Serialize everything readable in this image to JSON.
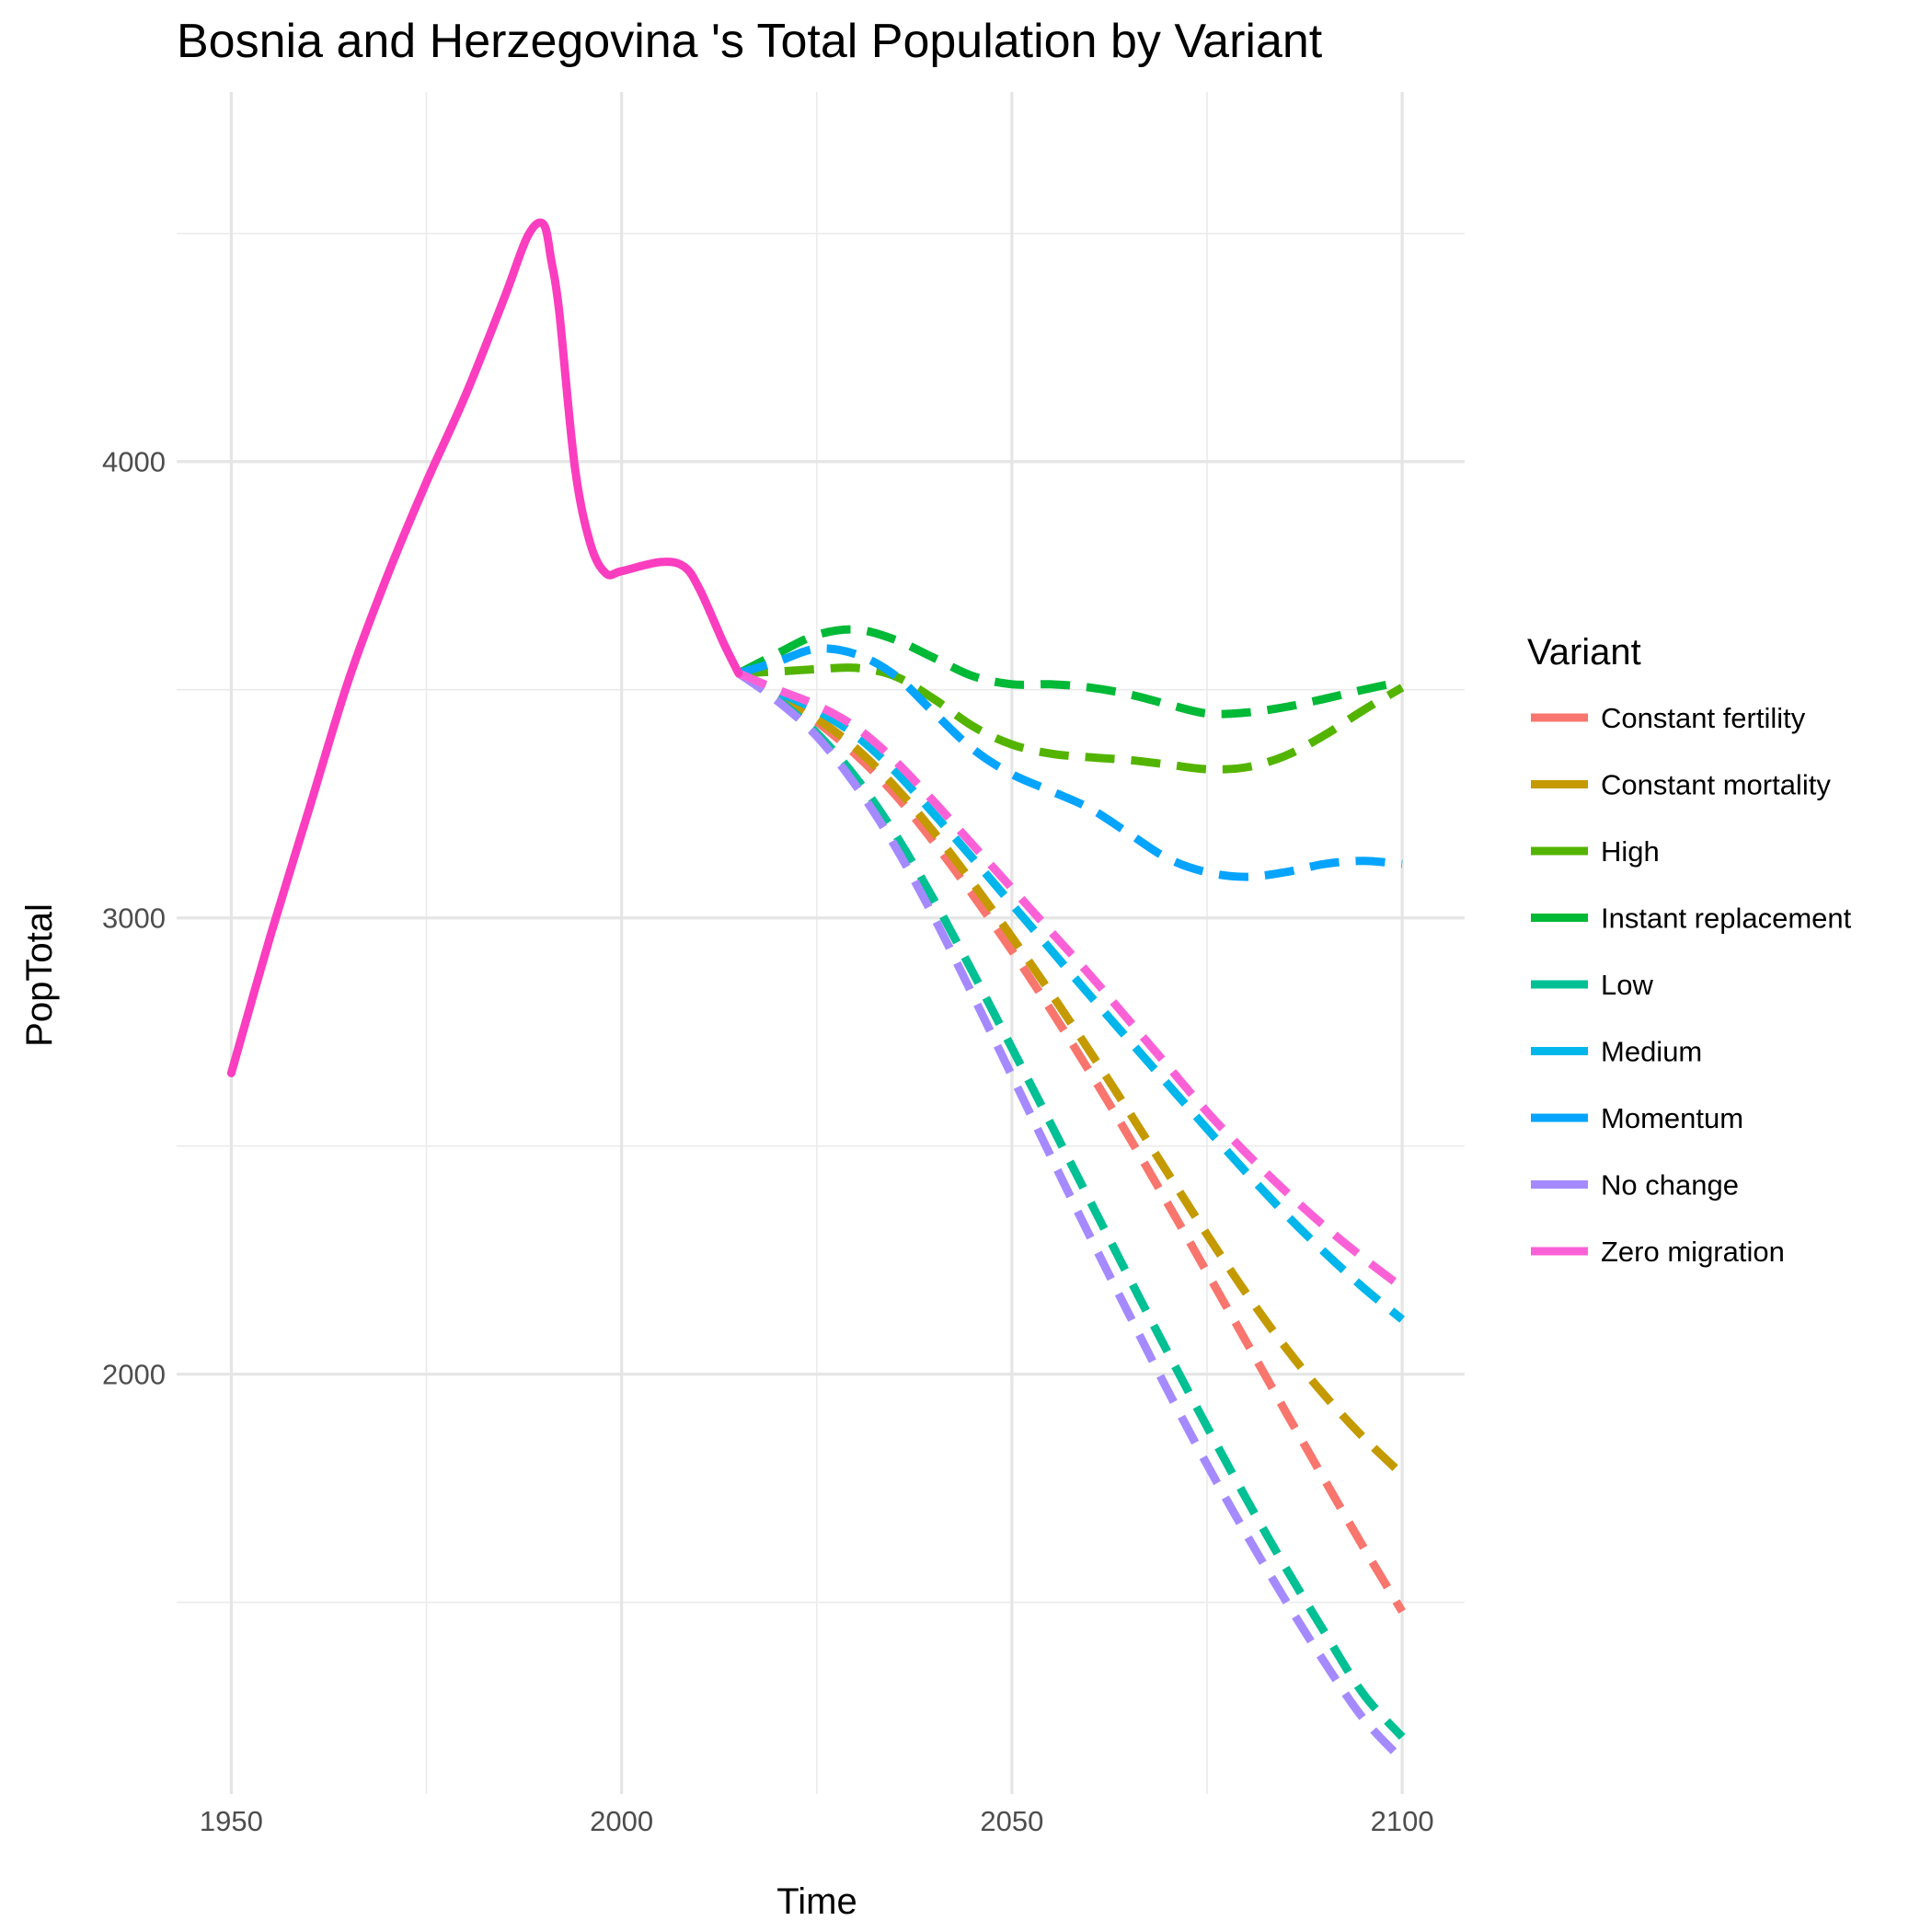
{
  "chart_data": {
    "type": "line",
    "title": "Bosnia and Herzegovina 's Total Population by Variant",
    "xlabel": "Time",
    "ylabel": "PopTotal",
    "xlim": [
      1943,
      2108
    ],
    "ylim": [
      1080,
      4810
    ],
    "x_ticks": [
      "1950",
      "2000",
      "2050",
      "2100"
    ],
    "x_tick_values": [
      1950,
      2000,
      2050,
      2100
    ],
    "y_ticks": [
      "2000",
      "3000",
      "4000"
    ],
    "y_tick_values": [
      2000,
      3000,
      4000
    ],
    "y_minor_gridlines": [
      1500,
      2500,
      3500,
      4500
    ],
    "x_minor_gridlines": [
      1975,
      2025,
      2075
    ],
    "grid": true,
    "legend_title": "Variant",
    "legend_position": "right",
    "series": [
      {
        "name": "Constant fertility",
        "color": "#F8766D",
        "dash": true,
        "x": [
          2015,
          2020,
          2025,
          2030,
          2035,
          2040,
          2045,
          2050,
          2055,
          2060,
          2065,
          2070,
          2075,
          2080,
          2085,
          2090,
          2095,
          2100
        ],
        "y": [
          3536,
          3488,
          3430,
          3358,
          3271,
          3166,
          3050,
          2928,
          2798,
          2662,
          2520,
          2373,
          2223,
          2072,
          1920,
          1770,
          1622,
          1480
        ]
      },
      {
        "name": "Constant mortality",
        "color": "#C49A00",
        "dash": true,
        "x": [
          2015,
          2020,
          2025,
          2030,
          2035,
          2040,
          2045,
          2050,
          2055,
          2060,
          2065,
          2070,
          2075,
          2080,
          2085,
          2090,
          2095,
          2100
        ],
        "y": [
          3536,
          3488,
          3437,
          3372,
          3288,
          3188,
          3076,
          2958,
          2835,
          2707,
          2575,
          2440,
          2306,
          2178,
          2060,
          1955,
          1862,
          1780
        ]
      },
      {
        "name": "High",
        "color": "#53B400",
        "dash": true,
        "x": [
          2015,
          2020,
          2025,
          2030,
          2035,
          2040,
          2045,
          2050,
          2055,
          2060,
          2065,
          2070,
          2075,
          2080,
          2085,
          2090,
          2095,
          2100
        ],
        "y": [
          3536,
          3540,
          3545,
          3548,
          3530,
          3480,
          3420,
          3380,
          3360,
          3352,
          3346,
          3336,
          3326,
          3330,
          3355,
          3400,
          3455,
          3505
        ]
      },
      {
        "name": "Instant replacement",
        "color": "#00B936",
        "dash": true,
        "x": [
          2015,
          2020,
          2025,
          2030,
          2035,
          2040,
          2045,
          2050,
          2055,
          2060,
          2065,
          2070,
          2075,
          2080,
          2085,
          2090,
          2095,
          2100
        ],
        "y": [
          3536,
          3580,
          3620,
          3632,
          3610,
          3570,
          3530,
          3512,
          3512,
          3505,
          3490,
          3468,
          3448,
          3450,
          3462,
          3480,
          3500,
          3518
        ]
      },
      {
        "name": "Low",
        "color": "#00C094",
        "dash": true,
        "x": [
          2015,
          2020,
          2025,
          2030,
          2035,
          2040,
          2045,
          2050,
          2055,
          2060,
          2065,
          2070,
          2075,
          2080,
          2085,
          2090,
          2095,
          2100
        ],
        "y": [
          3536,
          3478,
          3405,
          3308,
          3185,
          3040,
          2880,
          2715,
          2548,
          2380,
          2212,
          2047,
          1885,
          1728,
          1578,
          1436,
          1300,
          1205
        ]
      },
      {
        "name": "Medium",
        "color": "#00B6EB",
        "dash": true,
        "x": [
          2015,
          2020,
          2025,
          2030,
          2035,
          2040,
          2045,
          2050,
          2055,
          2060,
          2065,
          2070,
          2075,
          2080,
          2085,
          2090,
          2095,
          2100
        ],
        "y": [
          3536,
          3495,
          3455,
          3400,
          3322,
          3228,
          3130,
          3030,
          2930,
          2830,
          2732,
          2635,
          2538,
          2443,
          2352,
          2268,
          2190,
          2120
        ]
      },
      {
        "name": "Momentum",
        "color": "#06A4FF",
        "dash": true,
        "x": [
          2015,
          2020,
          2025,
          2030,
          2035,
          2040,
          2045,
          2050,
          2055,
          2060,
          2065,
          2070,
          2075,
          2080,
          2085,
          2090,
          2095,
          2100
        ],
        "y": [
          3536,
          3562,
          3590,
          3578,
          3532,
          3450,
          3370,
          3315,
          3278,
          3240,
          3185,
          3130,
          3100,
          3090,
          3100,
          3118,
          3125,
          3118
        ]
      },
      {
        "name": "No change",
        "color": "#A58AFF",
        "dash": true,
        "x": [
          2015,
          2020,
          2025,
          2030,
          2035,
          2040,
          2045,
          2050,
          2055,
          2060,
          2065,
          2070,
          2075,
          2080,
          2085,
          2090,
          2095,
          2100
        ],
        "y": [
          3536,
          3475,
          3398,
          3290,
          3158,
          3002,
          2830,
          2654,
          2477,
          2302,
          2131,
          1963,
          1802,
          1650,
          1506,
          1370,
          1246,
          1155
        ]
      },
      {
        "name": "Zero migration",
        "color": "#FB61D7",
        "dash": true,
        "x": [
          2015,
          2020,
          2025,
          2030,
          2035,
          2040,
          2045,
          2050,
          2055,
          2060,
          2065,
          2070,
          2075,
          2080,
          2085,
          2090,
          2095,
          2100
        ],
        "y": [
          3536,
          3500,
          3466,
          3418,
          3345,
          3255,
          3160,
          3065,
          2970,
          2875,
          2775,
          2675,
          2575,
          2485,
          2402,
          2325,
          2255,
          2190
        ]
      },
      {
        "name": "",
        "color": "#FB3DBF",
        "dash": false,
        "role": "estimates",
        "x": [
          1950,
          1955,
          1960,
          1965,
          1970,
          1975,
          1980,
          1985,
          1988,
          1990,
          1991,
          1992,
          1994,
          1996,
          1998,
          2000,
          2005,
          2008,
          2010,
          2013,
          2015
        ],
        "y": [
          2660,
          2960,
          3240,
          3520,
          3750,
          3955,
          4145,
          4360,
          4495,
          4520,
          4440,
          4330,
          3990,
          3820,
          3755,
          3760,
          3780,
          3770,
          3720,
          3605,
          3536
        ]
      }
    ]
  }
}
